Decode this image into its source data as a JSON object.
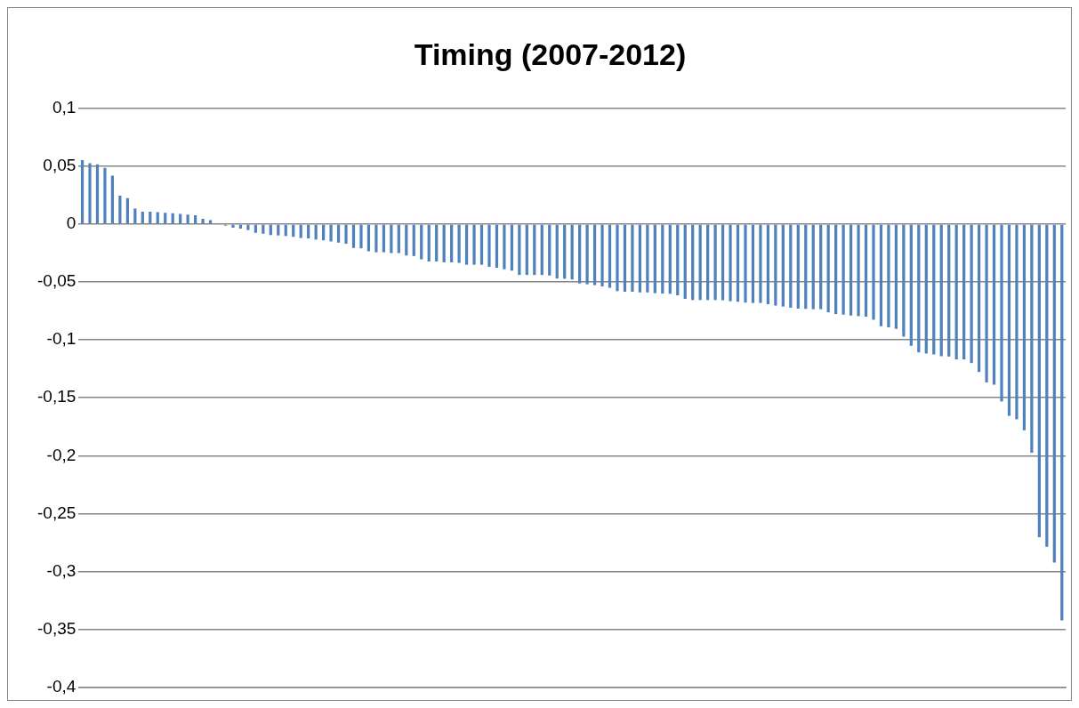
{
  "chart_data": {
    "type": "bar",
    "title": "Timing (2007-2012)",
    "categories": [
      null,
      null,
      null,
      null,
      null,
      null,
      null,
      null,
      null,
      null,
      null,
      null,
      null,
      null,
      null,
      null,
      null,
      null,
      null,
      null,
      null,
      null,
      null,
      null,
      null,
      null,
      null,
      null,
      null,
      null,
      null,
      null,
      null,
      null,
      null,
      null,
      null,
      null,
      null,
      null,
      null,
      null,
      null,
      null,
      null,
      null,
      null,
      null,
      null,
      null,
      null,
      null,
      null,
      null,
      null,
      null,
      null,
      null,
      null,
      null,
      null,
      null,
      null,
      null,
      null,
      null,
      null,
      null,
      null,
      null,
      null,
      null,
      null,
      null,
      null,
      null,
      null,
      null,
      null,
      null,
      null,
      null,
      null,
      null,
      null,
      null,
      null,
      null,
      null,
      null,
      null,
      null,
      null,
      null,
      null,
      null,
      null,
      null,
      null,
      null,
      null,
      null,
      null,
      null,
      null,
      null,
      null,
      null,
      null,
      null,
      null,
      null,
      null,
      null,
      null,
      null,
      null,
      null,
      null,
      null,
      null,
      null,
      null,
      null,
      null,
      null,
      null,
      null,
      null,
      null,
      null
    ],
    "values": [
      0.0552,
      0.0526,
      0.0516,
      0.0485,
      0.0418,
      0.0245,
      0.0224,
      0.0134,
      0.0108,
      0.0108,
      0.0103,
      0.0098,
      0.0093,
      0.0088,
      0.0083,
      0.0077,
      0.0046,
      0.0034,
      0,
      -0.0013,
      -0.0031,
      -0.0039,
      -0.0052,
      -0.0075,
      -0.0083,
      -0.0095,
      -0.0098,
      -0.0103,
      -0.011,
      -0.012,
      -0.0124,
      -0.0134,
      -0.014,
      -0.015,
      -0.016,
      -0.017,
      -0.0206,
      -0.0209,
      -0.0235,
      -0.0243,
      -0.0243,
      -0.025,
      -0.025,
      -0.0271,
      -0.0276,
      -0.0304,
      -0.0323,
      -0.0323,
      -0.033,
      -0.033,
      -0.0335,
      -0.0351,
      -0.0351,
      -0.0351,
      -0.0369,
      -0.0377,
      -0.039,
      -0.0402,
      -0.0439,
      -0.0439,
      -0.0439,
      -0.0439,
      -0.0444,
      -0.047,
      -0.0472,
      -0.0479,
      -0.0513,
      -0.052,
      -0.0527,
      -0.0538,
      -0.055,
      -0.0579,
      -0.0584,
      -0.0584,
      -0.059,
      -0.059,
      -0.0597,
      -0.06,
      -0.0602,
      -0.0615,
      -0.0646,
      -0.0656,
      -0.0656,
      -0.0656,
      -0.0656,
      -0.0658,
      -0.0666,
      -0.0671,
      -0.0678,
      -0.0681,
      -0.0681,
      -0.0692,
      -0.0704,
      -0.0712,
      -0.0722,
      -0.073,
      -0.0732,
      -0.0735,
      -0.0735,
      -0.0762,
      -0.0777,
      -0.0782,
      -0.079,
      -0.0795,
      -0.08,
      -0.0826,
      -0.0882,
      -0.0892,
      -0.0905,
      -0.0972,
      -0.1051,
      -0.1108,
      -0.1118,
      -0.1126,
      -0.1141,
      -0.1144,
      -0.1169,
      -0.1169,
      -0.12,
      -0.1277,
      -0.1367,
      -0.1387,
      -0.1532,
      -0.1655,
      -0.1686,
      -0.178,
      -0.1974,
      -0.2705,
      -0.2787,
      -0.2923,
      -0.3423
    ],
    "color": "#4f81bd",
    "ylim": [
      -0.4,
      0.1
    ],
    "yticks": [
      {
        "value": 0.1,
        "label": "0,1"
      },
      {
        "value": 0.05,
        "label": "0,05"
      },
      {
        "value": 0,
        "label": "0"
      },
      {
        "value": -0.05,
        "label": "-0,05"
      },
      {
        "value": -0.1,
        "label": "-0,1"
      },
      {
        "value": -0.15,
        "label": "-0,15"
      },
      {
        "value": -0.2,
        "label": "-0,2"
      },
      {
        "value": -0.25,
        "label": "-0,25"
      },
      {
        "value": -0.3,
        "label": "-0,3"
      },
      {
        "value": -0.35,
        "label": "-0,35"
      },
      {
        "value": -0.4,
        "label": "-0,4"
      }
    ],
    "grid": "y",
    "legend": false,
    "tick_labels": "y"
  }
}
